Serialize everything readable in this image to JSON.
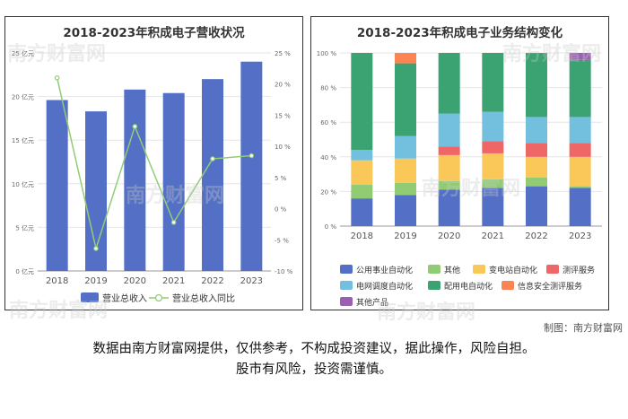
{
  "watermark_text": "南方财富网",
  "credit": "制图：南方财富网",
  "disclaimer": {
    "line1": "数据由南方财富网提供，仅供参考，不构成投资建议，据此操作，风险自担。",
    "line2": "股市有风险，投资需谨慎。"
  },
  "chart_data": [
    {
      "type": "bar",
      "title": "2018-2023年积成电子营收状况",
      "categories": [
        "2018",
        "2019",
        "2020",
        "2021",
        "2022",
        "2023"
      ],
      "series": [
        {
          "name": "营业总收入",
          "kind": "bar",
          "axis": "left",
          "color": "#5470c6",
          "values": [
            19.6,
            18.3,
            20.8,
            20.4,
            22.0,
            24.0
          ]
        },
        {
          "name": "营业总收入同比",
          "kind": "line",
          "axis": "right",
          "color": "#91cc75",
          "values": [
            21.0,
            -6.4,
            13.2,
            -2.2,
            8.0,
            8.5
          ]
        }
      ],
      "ylim": [
        0,
        25
      ],
      "yticks": [
        "0 亿元",
        "5 亿元",
        "10 亿元",
        "15 亿元",
        "20 亿元",
        "25 亿元"
      ],
      "ylim_right": [
        -10,
        25
      ],
      "yticks_right": [
        "-10 %",
        "-5 %",
        "0 %",
        "5 %",
        "10 %",
        "15 %",
        "20 %",
        "25 %"
      ],
      "legend_position": "bottom"
    },
    {
      "type": "bar",
      "stacked": true,
      "title": "2018-2023年积成电子业务结构变化",
      "categories": [
        "2018",
        "2019",
        "2020",
        "2021",
        "2022",
        "2023"
      ],
      "ylim": [
        0,
        100
      ],
      "yticks": [
        "0 %",
        "20 %",
        "40 %",
        "60 %",
        "80 %",
        "100 %"
      ],
      "series": [
        {
          "name": "公用事业自动化",
          "color": "#5470c6",
          "values": [
            16,
            18,
            21,
            22,
            23,
            22
          ]
        },
        {
          "name": "其他",
          "color": "#91cc75",
          "values": [
            8,
            7,
            5,
            5,
            5,
            1
          ]
        },
        {
          "name": "变电站自动化",
          "color": "#fac858",
          "values": [
            14,
            14,
            15,
            15,
            12,
            17
          ]
        },
        {
          "name": "测评服务",
          "color": "#ee6666",
          "values": [
            0,
            0,
            5,
            7,
            8,
            8
          ]
        },
        {
          "name": "电网调度自动化",
          "color": "#73c0de",
          "values": [
            6,
            13,
            19,
            17,
            15,
            15
          ]
        },
        {
          "name": "配用电自动化",
          "color": "#3ba272",
          "values": [
            56,
            42,
            35,
            34,
            37,
            33
          ]
        },
        {
          "name": "信息安全测评服务",
          "color": "#fc8452",
          "values": [
            0,
            6,
            0,
            0,
            0,
            0
          ]
        },
        {
          "name": "其他产品",
          "color": "#9a60b4",
          "values": [
            0,
            0,
            0,
            0,
            0,
            4
          ]
        }
      ],
      "legend_position": "bottom"
    }
  ]
}
